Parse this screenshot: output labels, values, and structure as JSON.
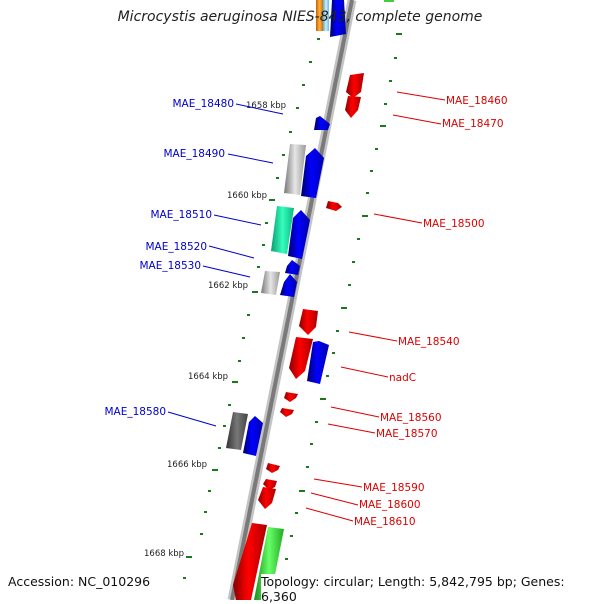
{
  "title": "Microcystis aeruginosa NIES-843, complete genome",
  "footer": {
    "accession": "Accession: NC_010296",
    "topology": "Topology: circular; Length: 5,842,795 bp; Genes: 6,360"
  },
  "colors": {
    "forward_gene": "#0000ee",
    "reverse_gene": "#ee0000",
    "backbone": "#888888",
    "ticks": "#1a7a1a"
  },
  "kbp_labels": [
    "1658 kbp",
    "1660 kbp",
    "1662 kbp",
    "1664 kbp",
    "1666 kbp",
    "1668 kbp"
  ],
  "left_genes": [
    "MAE_18480",
    "MAE_18490",
    "MAE_18510",
    "MAE_18520",
    "MAE_18530",
    "MAE_18580"
  ],
  "right_genes": [
    "MAE_18460",
    "MAE_18470",
    "MAE_18500",
    "MAE_18540",
    "nadC",
    "MAE_18560",
    "MAE_18570",
    "MAE_18590",
    "MAE_18600",
    "MAE_18610"
  ]
}
